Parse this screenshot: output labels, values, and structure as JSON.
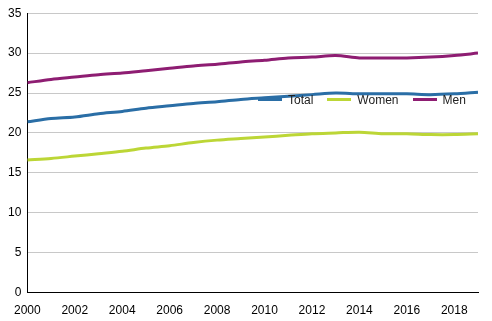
{
  "chart_data": {
    "type": "line",
    "x": [
      2000,
      2001,
      2002,
      2003,
      2004,
      2005,
      2006,
      2007,
      2008,
      2009,
      2010,
      2011,
      2012,
      2013,
      2014,
      2015,
      2016,
      2017,
      2018,
      2019
    ],
    "series": [
      {
        "name": "Total",
        "color": "#2a6ea6",
        "values": [
          21.4,
          21.8,
          22.0,
          22.4,
          22.7,
          23.1,
          23.4,
          23.7,
          23.9,
          24.2,
          24.4,
          24.6,
          24.8,
          25.0,
          24.9,
          24.9,
          24.9,
          24.8,
          24.9,
          25.1
        ]
      },
      {
        "name": "Women",
        "color": "#bcd636",
        "values": [
          16.6,
          16.8,
          17.1,
          17.4,
          17.7,
          18.1,
          18.4,
          18.8,
          19.1,
          19.3,
          19.5,
          19.7,
          19.9,
          20.0,
          20.1,
          19.9,
          19.9,
          19.8,
          19.8,
          19.9
        ]
      },
      {
        "name": "Men",
        "color": "#8e1d72",
        "values": [
          26.3,
          26.7,
          27.0,
          27.3,
          27.5,
          27.8,
          28.1,
          28.4,
          28.6,
          28.9,
          29.1,
          29.4,
          29.5,
          29.7,
          29.4,
          29.4,
          29.4,
          29.5,
          29.7,
          30.0
        ]
      }
    ],
    "xlim": [
      2000,
      2019
    ],
    "xticks": [
      2000,
      2002,
      2004,
      2006,
      2008,
      2010,
      2012,
      2014,
      2016,
      2018
    ],
    "ylim": [
      0,
      35
    ],
    "yticks": [
      0,
      5,
      10,
      15,
      20,
      25,
      30,
      35
    ],
    "grid": true,
    "legend": "lower right"
  }
}
